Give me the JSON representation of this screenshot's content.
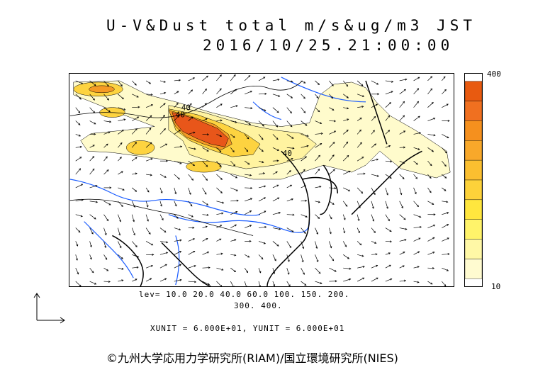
{
  "title": {
    "line1": "U-V&Dust total m/s&ug/m3 JST",
    "line2": "2016/10/25.21:00:00"
  },
  "colorbar": {
    "max_label": "400",
    "min_label": "10",
    "colors": [
      "#e85a10",
      "#f07020",
      "#f5901e",
      "#f8a82a",
      "#fbbf30",
      "#fdd23a",
      "#ffe63e",
      "#fff36a",
      "#fff8a6",
      "#fffbd0"
    ]
  },
  "map": {
    "contour_label_a": "40",
    "contour_label_b": "40",
    "contour_label_c": "40",
    "dust_colors": {
      "light": "#fffbcc",
      "pale": "#fff3a0",
      "mid": "#fdd340",
      "orange": "#f59a25",
      "red": "#e8561a"
    },
    "coast_color": "#000000",
    "river_color": "#1a5cff"
  },
  "levels": {
    "line1": "lev= 10.0 20.0 40.0 60.0 100. 150. 200.",
    "line2": "300. 400."
  },
  "units": "XUNIT = 6.000E+01, YUNIT = 6.000E+01",
  "credit": "©九州大学応用力学研究所(RIAM)/国立環境研究所(NIES)"
}
